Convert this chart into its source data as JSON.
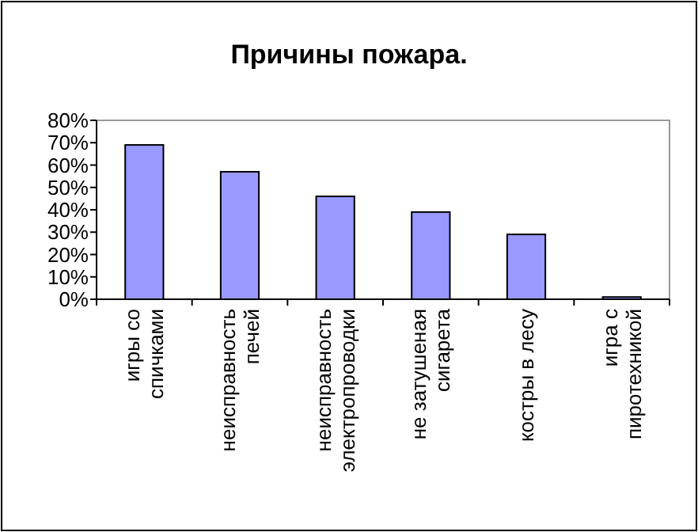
{
  "chart_data": {
    "type": "bar",
    "title": "Причины пожара.",
    "categories": [
      "игры со\nспичками",
      "неисправность\nпечей",
      "неисправность\nэлектропроводки",
      "не затушеная\nсигарета",
      "костры в лесу",
      "игра с\nпиротехникой"
    ],
    "values": [
      69,
      57,
      46,
      39,
      29,
      1
    ],
    "color": "#9999ff",
    "ylim": [
      0,
      80
    ],
    "yticks": [
      {
        "value": 0,
        "label": "0%"
      },
      {
        "value": 10,
        "label": "10%"
      },
      {
        "value": 20,
        "label": "20%"
      },
      {
        "value": 30,
        "label": "30%"
      },
      {
        "value": 40,
        "label": "40%"
      },
      {
        "value": 50,
        "label": "50%"
      },
      {
        "value": 60,
        "label": "60%"
      },
      {
        "value": 70,
        "label": "70%"
      },
      {
        "value": 80,
        "label": "80%"
      }
    ],
    "grid": false
  }
}
